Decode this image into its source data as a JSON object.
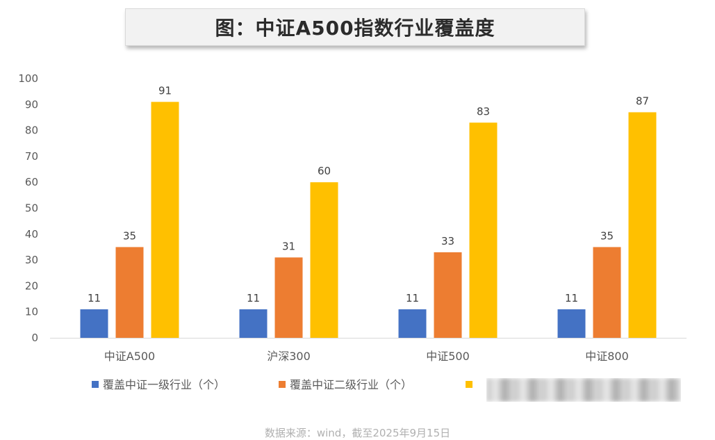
{
  "chart_data": {
    "type": "bar",
    "title": "图：中证A500指数行业覆盖度",
    "categories": [
      "中证A500",
      "沪深300",
      "中证500",
      "中证800"
    ],
    "series": [
      {
        "name": "覆盖中证一级行业（个）",
        "color": "#4472c4",
        "values": [
          11,
          11,
          11,
          11
        ]
      },
      {
        "name": "覆盖中证二级行业（个）",
        "color": "#ed7d31",
        "values": [
          35,
          31,
          33,
          35
        ]
      },
      {
        "name": "",
        "color": "#ffc000",
        "values": [
          91,
          60,
          83,
          87
        ]
      }
    ],
    "ylim": [
      0,
      100
    ],
    "yticks": [
      0,
      10,
      20,
      30,
      40,
      50,
      60,
      70,
      80,
      90,
      100
    ],
    "grid": false,
    "legend_position": "bottom",
    "source": "数据来源：wind，截至2025年9月15日"
  }
}
